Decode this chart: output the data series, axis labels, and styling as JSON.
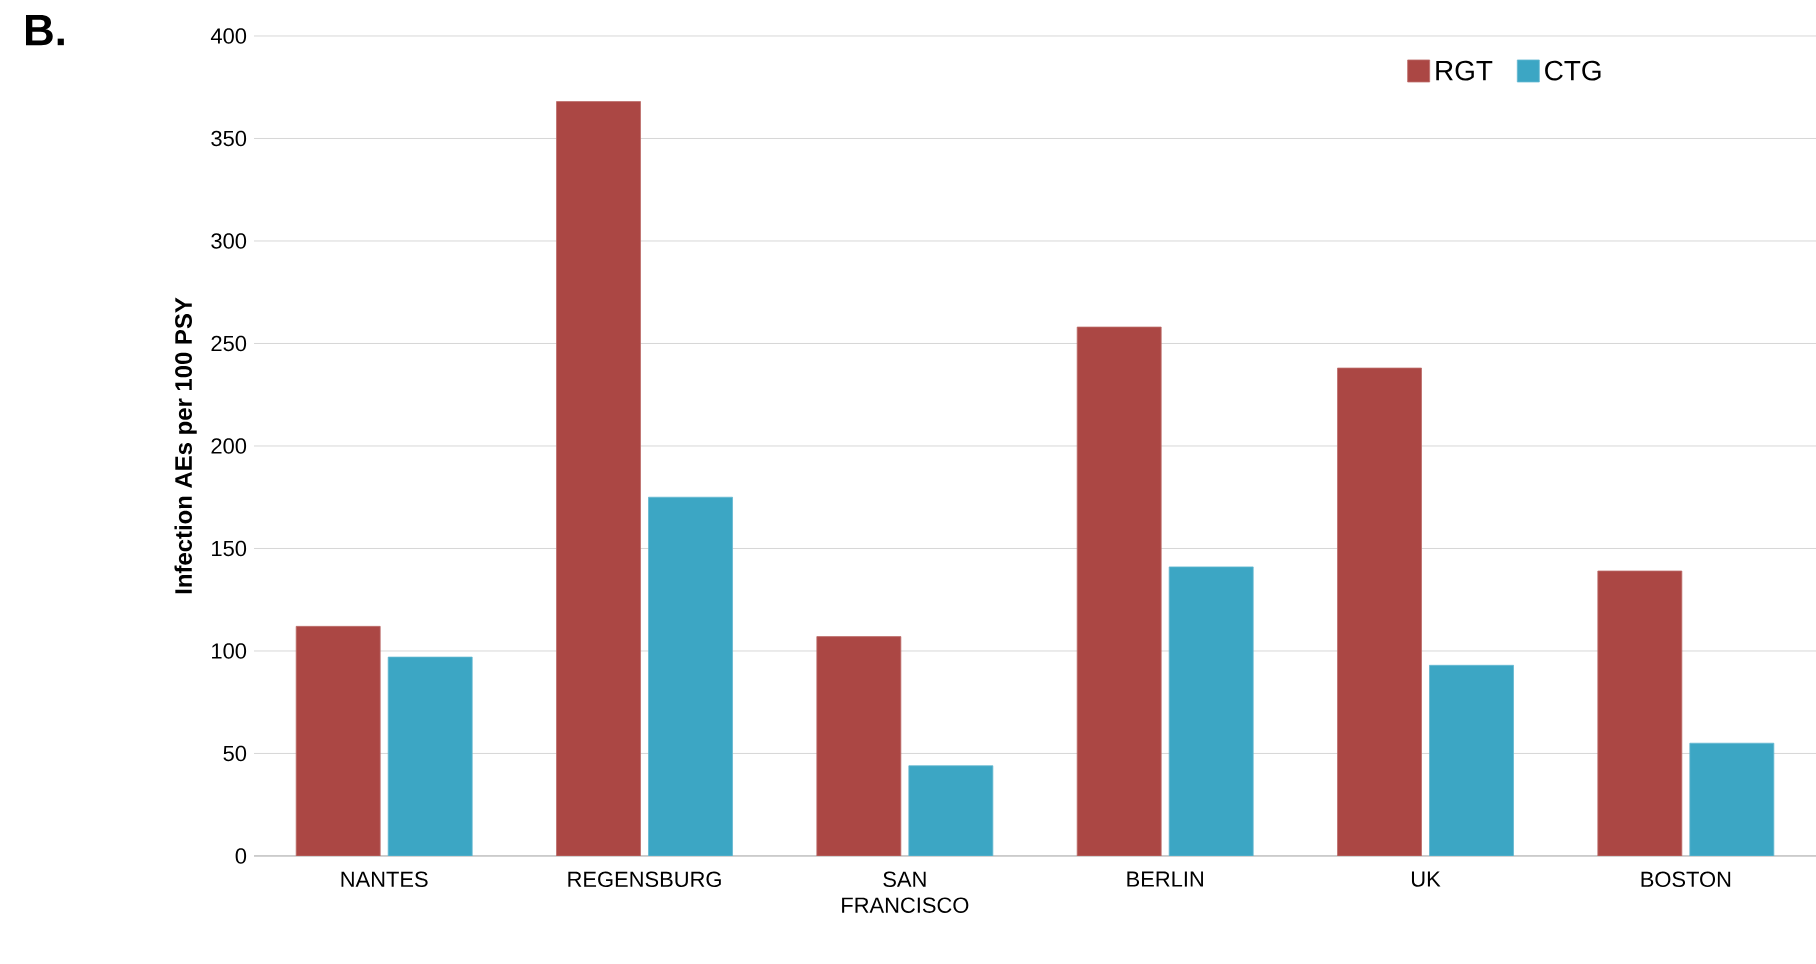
{
  "chart_data": {
    "type": "bar",
    "ylabel": "Infection AEs per 100 PSY",
    "annotations": [
      "B."
    ],
    "categories": [
      "NANTES",
      "REGENSBURG",
      "SAN FRANCISCO",
      "BERLIN",
      "UK",
      "BOSTON"
    ],
    "series": [
      {
        "name": "RGT",
        "color": "#ab4744",
        "values": [
          112,
          368,
          107,
          258,
          238,
          139
        ]
      },
      {
        "name": "CTG",
        "color": "#3ca6c4",
        "values": [
          97,
          175,
          44,
          141,
          93,
          55
        ]
      }
    ],
    "ylim": [
      0,
      400
    ],
    "yticks": [
      0,
      50,
      100,
      150,
      200,
      250,
      300,
      350,
      400
    ],
    "grid": "y",
    "legend": "top right"
  }
}
